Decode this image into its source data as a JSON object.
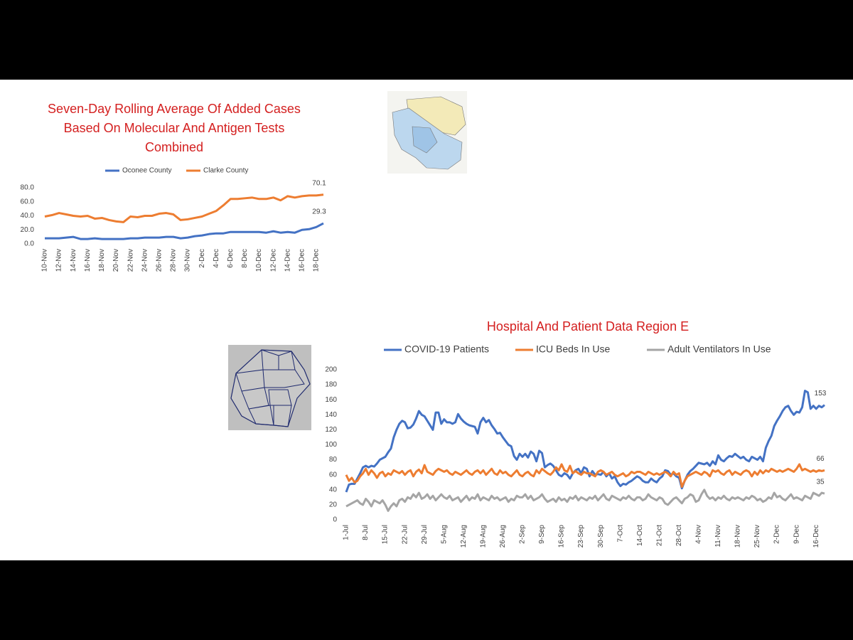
{
  "chart_data": [
    {
      "type": "line",
      "title": "Seven-Day Rolling Average Of  Added Cases Based On Molecular And Antigen Tests Combined",
      "legend": "top",
      "categories": [
        "10-Nov",
        null,
        "12-Nov",
        null,
        "14-Nov",
        null,
        "16-Nov",
        null,
        "18-Nov",
        null,
        "20-Nov",
        null,
        "22-Nov",
        null,
        "24-Nov",
        null,
        "26-Nov",
        null,
        "28-Nov",
        null,
        "30-Nov",
        null,
        "2-Dec",
        null,
        "4-Dec",
        null,
        "6-Dec",
        null,
        "8-Dec",
        null,
        "10-Dec",
        null,
        "12-Dec",
        null,
        "14-Dec",
        null,
        "16-Dec",
        null,
        "18-Dec",
        null
      ],
      "series": [
        {
          "name": "Oconee County",
          "color": "#4472c4",
          "values": [
            8,
            8,
            8,
            9,
            10,
            7,
            7,
            8,
            7,
            7,
            7,
            7,
            8,
            8,
            9,
            9,
            9,
            10,
            10,
            8,
            9,
            11,
            12,
            14,
            15,
            15,
            17,
            17,
            17,
            17,
            17,
            16,
            18,
            16,
            17,
            16,
            20,
            21,
            24,
            29.3
          ]
        },
        {
          "name": "Clarke County",
          "color": "#ed7d31",
          "values": [
            39,
            41,
            44,
            42,
            40,
            39,
            40,
            36,
            37,
            34,
            32,
            31,
            39,
            38,
            40,
            40,
            43,
            44,
            42,
            34,
            35,
            37,
            39,
            43,
            47,
            55,
            64,
            64,
            65,
            66,
            64,
            64,
            66,
            62,
            68,
            66,
            68,
            69,
            69,
            70.1
          ]
        }
      ],
      "ylim": [
        0,
        80
      ],
      "yticks": [
        {
          "value": 0,
          "label": "0.0"
        },
        {
          "value": 20,
          "label": "20.0"
        },
        {
          "value": 40,
          "label": "40.0"
        },
        {
          "value": 60,
          "label": "60.0"
        },
        {
          "value": 80,
          "label": "80.0"
        }
      ],
      "grid": false
    },
    {
      "type": "line",
      "title": "Hospital And Patient Data Region E",
      "legend": "top",
      "categories": [
        "1-Jul",
        null,
        null,
        null,
        null,
        null,
        null,
        "8-Jul",
        null,
        null,
        null,
        null,
        null,
        null,
        "15-Jul",
        null,
        null,
        null,
        null,
        null,
        null,
        "22-Jul",
        null,
        null,
        null,
        null,
        null,
        null,
        "29-Jul",
        null,
        null,
        null,
        null,
        null,
        null,
        "5-Aug",
        null,
        null,
        null,
        null,
        null,
        null,
        "12-Aug",
        null,
        null,
        null,
        null,
        null,
        null,
        "19-Aug",
        null,
        null,
        null,
        null,
        null,
        null,
        "26-Aug",
        null,
        null,
        null,
        null,
        null,
        null,
        "2-Sep",
        null,
        null,
        null,
        null,
        null,
        null,
        "9-Sep",
        null,
        null,
        null,
        null,
        null,
        null,
        "16-Sep",
        null,
        null,
        null,
        null,
        null,
        null,
        "23-Sep",
        null,
        null,
        null,
        null,
        null,
        null,
        "30-Sep",
        null,
        null,
        null,
        null,
        null,
        null,
        "7-Oct",
        null,
        null,
        null,
        null,
        null,
        null,
        "14-Oct",
        null,
        null,
        null,
        null,
        null,
        null,
        "21-Oct",
        null,
        null,
        null,
        null,
        null,
        null,
        "28-Oct",
        null,
        null,
        null,
        null,
        null,
        null,
        "4-Nov",
        null,
        null,
        null,
        null,
        null,
        null,
        "11-Nov",
        null,
        null,
        null,
        null,
        null,
        null,
        "18-Nov",
        null,
        null,
        null,
        null,
        null,
        null,
        "25-Nov",
        null,
        null,
        null,
        null,
        null,
        null,
        "2-Dec",
        null,
        null,
        null,
        null,
        null,
        null,
        "9-Dec",
        null,
        null,
        null,
        null,
        null,
        null,
        "16-Dec",
        null,
        null,
        null
      ],
      "series": [
        {
          "name": "COVID-19 Patients",
          "color": "#4472c4",
          "values": [
            37,
            47,
            48,
            48,
            55,
            62,
            70,
            72,
            70,
            72,
            71,
            75,
            80,
            82,
            84,
            90,
            95,
            110,
            120,
            128,
            132,
            130,
            122,
            123,
            127,
            135,
            145,
            140,
            138,
            132,
            126,
            120,
            143,
            143,
            128,
            134,
            130,
            130,
            128,
            130,
            141,
            135,
            131,
            128,
            126,
            125,
            124,
            115,
            130,
            136,
            130,
            133,
            126,
            121,
            115,
            116,
            110,
            105,
            100,
            98,
            85,
            80,
            88,
            84,
            88,
            83,
            91,
            88,
            78,
            92,
            89,
            70,
            73,
            75,
            72,
            66,
            60,
            58,
            62,
            60,
            55,
            62,
            66,
            68,
            62,
            70,
            68,
            58,
            65,
            60,
            61,
            60,
            64,
            58,
            62,
            55,
            58,
            50,
            45,
            48,
            47,
            50,
            52,
            55,
            58,
            56,
            52,
            50,
            50,
            55,
            52,
            50,
            55,
            58,
            66,
            65,
            60,
            62,
            58,
            56,
            42,
            52,
            60,
            65,
            68,
            72,
            76,
            75,
            74,
            76,
            72,
            78,
            74,
            86,
            80,
            78,
            82,
            85,
            84,
            88,
            85,
            82,
            84,
            80,
            78,
            84,
            82,
            80,
            84,
            78,
            96,
            105,
            112,
            125,
            132,
            138,
            145,
            150,
            152,
            145,
            140,
            144,
            143,
            150,
            172,
            170,
            148,
            152,
            148,
            152,
            150,
            153
          ]
        },
        {
          "name": "ICU Beds In Use",
          "color": "#ed7d31",
          "values": [
            60,
            52,
            56,
            50,
            52,
            58,
            62,
            68,
            60,
            66,
            62,
            56,
            62,
            64,
            58,
            62,
            60,
            66,
            64,
            62,
            65,
            60,
            64,
            66,
            58,
            64,
            67,
            62,
            73,
            64,
            62,
            60,
            65,
            68,
            66,
            64,
            66,
            62,
            60,
            64,
            62,
            60,
            63,
            66,
            62,
            60,
            64,
            66,
            62,
            66,
            60,
            64,
            68,
            62,
            60,
            66,
            62,
            64,
            60,
            58,
            62,
            66,
            60,
            58,
            62,
            64,
            60,
            58,
            66,
            62,
            68,
            65,
            62,
            60,
            64,
            70,
            66,
            74,
            66,
            64,
            72,
            62,
            65,
            62,
            60,
            64,
            62,
            62,
            60,
            58,
            64,
            66,
            64,
            60,
            62,
            64,
            60,
            58,
            60,
            62,
            58,
            60,
            64,
            62,
            64,
            64,
            62,
            60,
            64,
            62,
            60,
            62,
            60,
            62,
            64,
            62,
            58,
            64,
            60,
            62,
            44,
            52,
            58,
            60,
            62,
            64,
            62,
            60,
            64,
            62,
            58,
            66,
            64,
            66,
            62,
            60,
            64,
            66,
            60,
            64,
            62,
            60,
            64,
            66,
            64,
            58,
            64,
            60,
            66,
            62,
            66,
            64,
            68,
            66,
            64,
            66,
            64,
            66,
            68,
            66,
            64,
            68,
            74,
            66,
            68,
            66,
            64,
            66,
            64,
            66,
            65,
            66
          ]
        },
        {
          "name": "Adult Ventilators In Use",
          "color": "#a5a5a5",
          "values": [
            18,
            20,
            22,
            24,
            26,
            22,
            20,
            28,
            24,
            18,
            26,
            24,
            22,
            26,
            20,
            12,
            18,
            22,
            18,
            26,
            28,
            24,
            30,
            28,
            34,
            30,
            36,
            28,
            30,
            34,
            28,
            32,
            26,
            30,
            34,
            30,
            28,
            32,
            26,
            28,
            30,
            24,
            28,
            32,
            26,
            30,
            28,
            34,
            26,
            30,
            28,
            26,
            32,
            28,
            30,
            26,
            28,
            30,
            24,
            28,
            26,
            32,
            30,
            30,
            34,
            28,
            32,
            26,
            28,
            30,
            34,
            28,
            24,
            26,
            28,
            24,
            30,
            26,
            28,
            24,
            30,
            28,
            32,
            26,
            30,
            28,
            26,
            30,
            28,
            32,
            26,
            30,
            34,
            28,
            26,
            32,
            30,
            28,
            26,
            30,
            28,
            32,
            28,
            26,
            30,
            30,
            26,
            28,
            34,
            30,
            28,
            26,
            30,
            28,
            22,
            20,
            24,
            28,
            30,
            26,
            22,
            28,
            30,
            34,
            32,
            24,
            26,
            34,
            40,
            32,
            28,
            30,
            26,
            30,
            28,
            32,
            28,
            26,
            30,
            28,
            30,
            28,
            26,
            30,
            28,
            32,
            30,
            26,
            28,
            24,
            26,
            30,
            28,
            36,
            30,
            32,
            28,
            26,
            30,
            34,
            28,
            30,
            28,
            26,
            32,
            30,
            28,
            36,
            34,
            32,
            36,
            35
          ]
        }
      ],
      "ylim": [
        0,
        200
      ],
      "yticks": [
        0,
        20,
        40,
        60,
        80,
        100,
        120,
        140,
        160,
        180,
        200
      ],
      "grid": false
    }
  ]
}
